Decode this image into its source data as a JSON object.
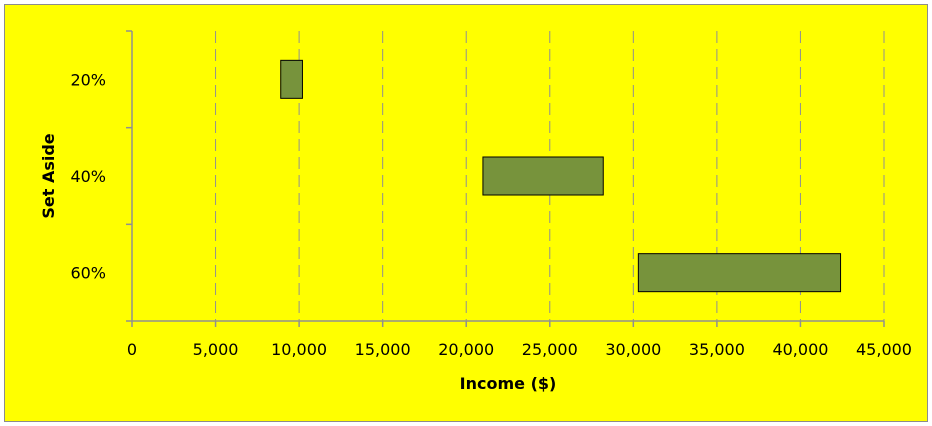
{
  "chart_data": {
    "type": "bar",
    "orientation": "horizontal",
    "subtype": "floating-range",
    "title": "",
    "xlabel": "Income ($)",
    "ylabel": "Set Aside",
    "categories": [
      "20%",
      "40%",
      "60%"
    ],
    "series": [
      {
        "ranges": [
          [
            8900,
            10200
          ],
          [
            21000,
            28200
          ],
          [
            30300,
            42400
          ]
        ]
      }
    ],
    "xlim": [
      0,
      45000
    ],
    "xticks": [
      0,
      5000,
      10000,
      15000,
      20000,
      25000,
      30000,
      35000,
      40000,
      45000
    ],
    "xtick_labels": [
      "0",
      "5,000",
      "10,000",
      "15,000",
      "20,000",
      "25,000",
      "30,000",
      "35,000",
      "40,000",
      "45,000"
    ],
    "grid": "vertical-dashed",
    "legend": "none",
    "colors": {
      "background": "#ffff00",
      "bar_fill": "#77933c",
      "bar_stroke": "#000000",
      "grid": "#909090"
    }
  }
}
